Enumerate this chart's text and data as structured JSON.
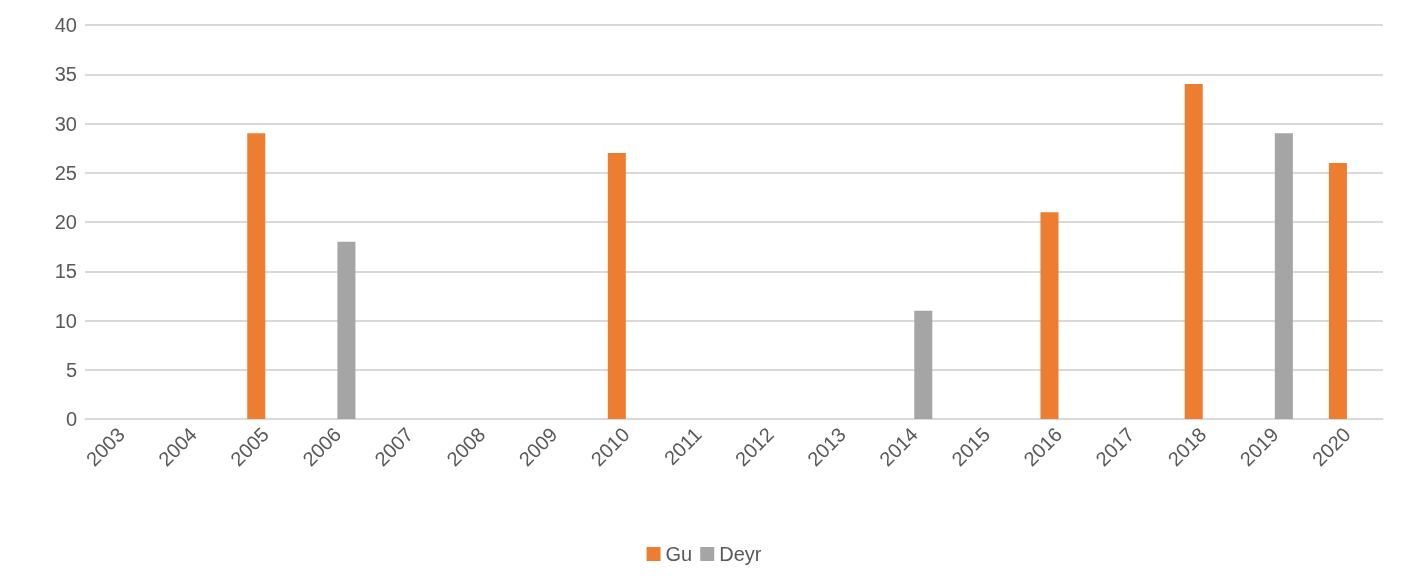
{
  "chart_data": {
    "type": "bar",
    "categories": [
      "2003",
      "2004",
      "2005",
      "2006",
      "2007",
      "2008",
      "2009",
      "2010",
      "2011",
      "2012",
      "2013",
      "2014",
      "2015",
      "2016",
      "2017",
      "2018",
      "2019",
      "2020"
    ],
    "series": [
      {
        "name": "Gu",
        "color": "#ed7d31",
        "values": [
          null,
          null,
          29,
          null,
          null,
          null,
          null,
          27,
          null,
          null,
          null,
          null,
          null,
          21,
          null,
          34,
          null,
          26
        ]
      },
      {
        "name": "Deyr",
        "color": "#a5a5a5",
        "values": [
          null,
          null,
          null,
          18,
          null,
          null,
          null,
          null,
          null,
          null,
          null,
          11,
          null,
          null,
          null,
          null,
          29,
          null
        ]
      }
    ],
    "ylim": [
      0,
      40
    ],
    "yticks": [
      0,
      5,
      10,
      15,
      20,
      25,
      30,
      35,
      40
    ],
    "grid": "y",
    "legend": "bottom"
  }
}
